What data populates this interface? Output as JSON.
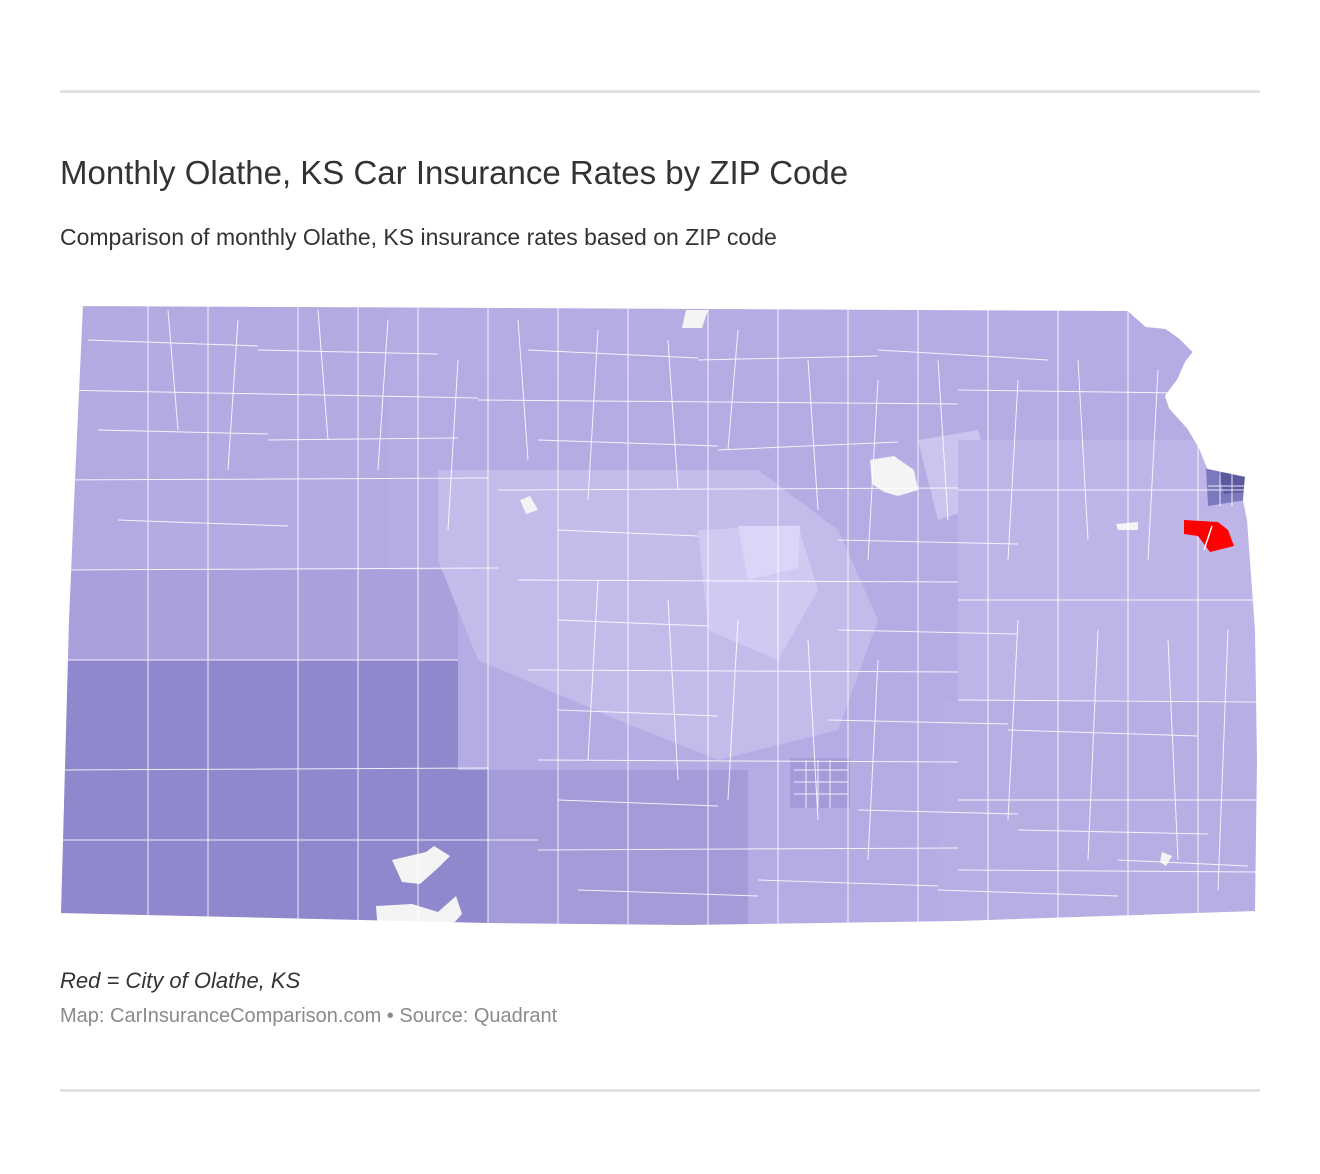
{
  "header": {
    "title": "Monthly Olathe, KS Car Insurance Rates by ZIP Code",
    "subtitle": "Comparison of monthly Olathe, KS insurance rates based on ZIP code"
  },
  "map": {
    "region": "Kansas",
    "highlight_color": "#ff0000",
    "border_color": "#ffffff",
    "palette": {
      "darkest": "#5c5a9e",
      "dark": "#8f88cc",
      "mid_dark": "#a49cd9",
      "mid": "#b5ace3",
      "light": "#c3bbea",
      "lightest": "#ddd5f8",
      "no_data": "#f4f4f4"
    }
  },
  "footer": {
    "legend_note": "Red = City of Olathe, KS",
    "source": "Map: CarInsuranceComparison.com • Source: Quadrant"
  }
}
